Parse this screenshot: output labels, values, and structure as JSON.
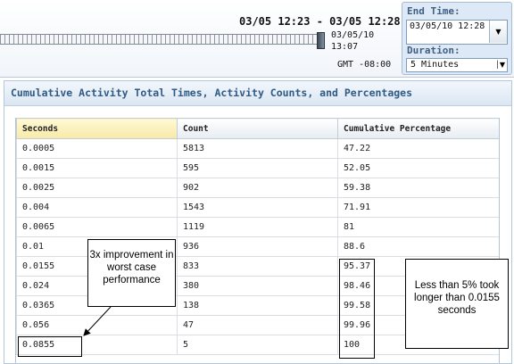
{
  "timebar": {
    "range_title": "03/05 12:23 - 03/05 12:28",
    "current_end": "03/05/10 13:07",
    "timezone": "GMT -08:00"
  },
  "end_time": {
    "label": "End Time:",
    "value": "03/05/10 12:28"
  },
  "duration": {
    "label": "Duration:",
    "value": "5 Minutes"
  },
  "panel": {
    "title": "Cumulative Activity Total Times, Activity Counts, and Percentages"
  },
  "table": {
    "headers": [
      "Seconds",
      "Count",
      "Cumulative Percentage"
    ],
    "rows": [
      [
        "0.0005",
        "5813",
        "47.22"
      ],
      [
        "0.0015",
        "595",
        "52.05"
      ],
      [
        "0.0025",
        "902",
        "59.38"
      ],
      [
        "0.004",
        "1543",
        "71.91"
      ],
      [
        "0.0065",
        "1119",
        "81"
      ],
      [
        "0.01",
        "936",
        "88.6"
      ],
      [
        "0.0155",
        "833",
        "95.37"
      ],
      [
        "0.024",
        "380",
        "98.46"
      ],
      [
        "0.0365",
        "138",
        "99.58"
      ],
      [
        "0.056",
        "47",
        "99.96"
      ],
      [
        "0.0855",
        "5",
        "100"
      ]
    ]
  },
  "annotations": {
    "left": "3x improvement in worst case performance",
    "right": "Less than 5% took longer than 0.0155 seconds"
  },
  "colors": {
    "accent": "#2f5a85",
    "sorted_header": "#f7e9a6",
    "panel_border": "#b3c6da"
  }
}
